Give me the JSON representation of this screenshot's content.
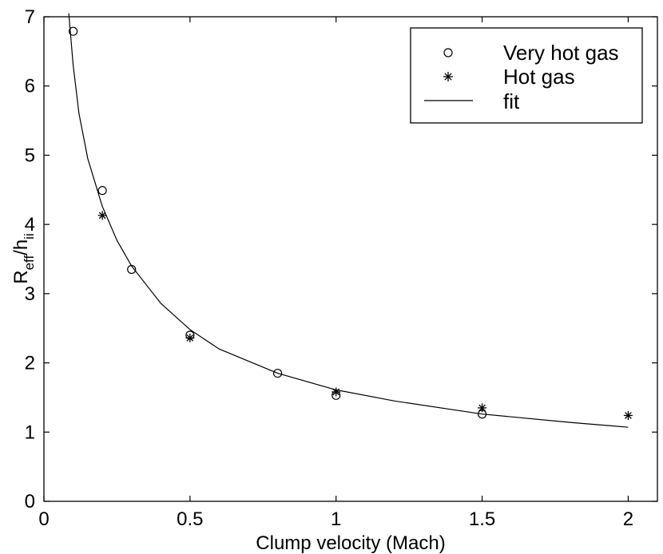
{
  "chart_data": {
    "type": "scatter",
    "xlabel": "Clump velocity (Mach)",
    "ylabel": {
      "main_a": "R",
      "sub_a": "eff",
      "main_b": "/h",
      "sub_b": "ii"
    },
    "xlim": [
      0,
      2.1
    ],
    "ylim": [
      0,
      7
    ],
    "xticks": [
      "0",
      "0.5",
      "1",
      "1.5",
      "2"
    ],
    "yticks": [
      "0",
      "1",
      "2",
      "3",
      "4",
      "5",
      "6",
      "7"
    ],
    "xtick_values": [
      0,
      0.5,
      1,
      1.5,
      2
    ],
    "ytick_values": [
      0,
      1,
      2,
      3,
      4,
      5,
      6,
      7
    ],
    "grid": false,
    "legend_position": "top-right",
    "series": [
      {
        "name": "Very hot gas",
        "marker": "circle",
        "x": [
          0.1,
          0.2,
          0.3,
          0.5,
          0.8,
          1.0,
          1.5
        ],
        "y": [
          6.79,
          4.49,
          3.35,
          2.4,
          1.85,
          1.53,
          1.26
        ]
      },
      {
        "name": "Hot gas",
        "marker": "asterisk",
        "x": [
          0.2,
          0.5,
          1.0,
          1.5,
          2.0
        ],
        "y": [
          4.13,
          2.36,
          1.58,
          1.35,
          1.24
        ]
      },
      {
        "name": "fit",
        "marker": "line",
        "x": [
          0.085,
          0.1,
          0.12,
          0.15,
          0.2,
          0.25,
          0.3,
          0.4,
          0.5,
          0.6,
          0.8,
          1.0,
          1.2,
          1.5,
          1.8,
          2.0
        ],
        "y": [
          7.05,
          6.3,
          5.6,
          4.95,
          4.26,
          3.77,
          3.4,
          2.86,
          2.48,
          2.2,
          1.85,
          1.61,
          1.45,
          1.26,
          1.14,
          1.07
        ]
      }
    ]
  }
}
